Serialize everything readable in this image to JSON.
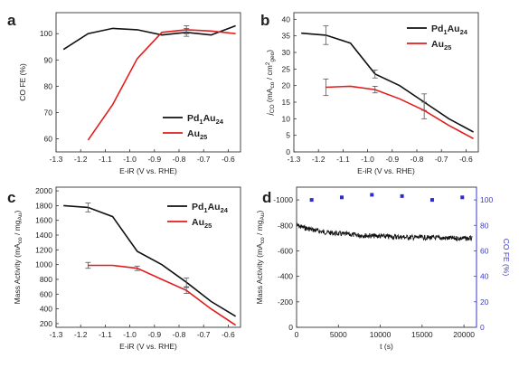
{
  "chart_data": [
    {
      "panel": "a",
      "type": "line",
      "xlabel": "E-iR (V vs. RHE)",
      "ylabel": "CO FE (%)",
      "xlim": [
        -1.3,
        -0.55
      ],
      "ylim": [
        55,
        108
      ],
      "x_ticks": [
        -1.3,
        -1.2,
        -1.1,
        -1.0,
        -0.9,
        -0.8,
        -0.7,
        -0.6
      ],
      "y_ticks": [
        60,
        70,
        80,
        90,
        100
      ],
      "legend_position": "lower-right",
      "series": [
        {
          "name": "Pd1Au24",
          "label_main": "Pd",
          "label_sub1": "1",
          "label_mid": "Au",
          "label_sub2": "24",
          "color": "#111111",
          "x": [
            -1.27,
            -1.17,
            -1.07,
            -0.97,
            -0.87,
            -0.77,
            -0.67,
            -0.57
          ],
          "y": [
            94,
            100,
            102,
            101.5,
            99.5,
            100.5,
            99.5,
            103
          ],
          "error": [
            0,
            0,
            0,
            0,
            0,
            1.5,
            0,
            0
          ]
        },
        {
          "name": "Au25",
          "label_main": "Au",
          "label_sub1": "25",
          "color": "#e31c1c",
          "x": [
            -1.17,
            -1.07,
            -0.97,
            -0.87,
            -0.77,
            -0.67,
            -0.57
          ],
          "y": [
            59.5,
            73,
            90.5,
            100.5,
            101.5,
            101,
            100
          ],
          "error": [
            0,
            0,
            0,
            0,
            1.5,
            0,
            0
          ]
        }
      ]
    },
    {
      "panel": "b",
      "type": "line",
      "xlabel": "E-iR (V vs. RHE)",
      "ylabel": "jCO (mAcm / cm²geo)",
      "ylabel_parts": {
        "j": "j",
        "jsub": "CO",
        "open": " (mA",
        "asub": "co",
        "slash": " / cm",
        "gsup": "2",
        "gsub": "geo",
        "close": ")"
      },
      "xlim": [
        -1.3,
        -0.55
      ],
      "ylim": [
        0,
        42
      ],
      "x_ticks": [
        -1.3,
        -1.2,
        -1.1,
        -1.0,
        -0.9,
        -0.8,
        -0.7,
        -0.6
      ],
      "y_ticks": [
        0,
        5,
        10,
        15,
        20,
        25,
        30,
        35,
        40
      ],
      "legend_position": "top-right",
      "series": [
        {
          "name": "Pd1Au24",
          "label_main": "Pd",
          "label_sub1": "1",
          "label_mid": "Au",
          "label_sub2": "24",
          "color": "#111111",
          "x": [
            -1.27,
            -1.17,
            -1.07,
            -0.97,
            -0.87,
            -0.77,
            -0.67,
            -0.57
          ],
          "y": [
            35.8,
            35.2,
            32.8,
            23.5,
            20,
            15,
            10,
            6
          ],
          "error": [
            0,
            2.8,
            0,
            1.2,
            0,
            2.5,
            0,
            0
          ]
        },
        {
          "name": "Au25",
          "label_main": "Au",
          "label_sub1": "25",
          "color": "#e31c1c",
          "x": [
            -1.17,
            -1.07,
            -0.97,
            -0.87,
            -0.77,
            -0.67,
            -0.57
          ],
          "y": [
            19.5,
            19.8,
            18.8,
            16,
            12.5,
            8,
            4
          ],
          "error": [
            2.5,
            0,
            1,
            0,
            2.5,
            0,
            0
          ]
        }
      ]
    },
    {
      "panel": "c",
      "type": "line",
      "xlabel": "E-iR (V vs. RHE)",
      "ylabel": "Mass Activity (mAco / mgmetal)",
      "ylabel_parts": {
        "main": "Mass Activity (mA",
        "sub1": "co",
        "mid": " / mg",
        "sub2": "Au",
        "close": ")"
      },
      "xlim": [
        -1.3,
        -0.55
      ],
      "ylim": [
        150,
        2050
      ],
      "x_ticks": [
        -1.3,
        -1.2,
        -1.1,
        -1.0,
        -0.9,
        -0.8,
        -0.7,
        -0.6
      ],
      "y_ticks": [
        200,
        400,
        600,
        800,
        1000,
        1200,
        1400,
        1600,
        1800,
        2000
      ],
      "legend_position": "top-right",
      "series": [
        {
          "name": "Pd1Au24",
          "label_main": "Pd",
          "label_sub1": "1",
          "label_mid": "Au",
          "label_sub2": "24",
          "color": "#111111",
          "x": [
            -1.27,
            -1.17,
            -1.07,
            -0.97,
            -0.87,
            -0.77,
            -0.67,
            -0.57
          ],
          "y": [
            1800,
            1775,
            1650,
            1180,
            1000,
            760,
            500,
            300
          ],
          "error": [
            0,
            60,
            0,
            0,
            0,
            60,
            0,
            0
          ]
        },
        {
          "name": "Au25",
          "label_main": "Au",
          "label_sub1": "25",
          "color": "#e31c1c",
          "x": [
            -1.17,
            -1.07,
            -0.97,
            -0.87,
            -0.77,
            -0.67,
            -0.57
          ],
          "y": [
            990,
            990,
            950,
            800,
            650,
            400,
            180
          ],
          "error": [
            40,
            0,
            30,
            0,
            40,
            0,
            0
          ]
        }
      ]
    },
    {
      "panel": "d",
      "type": "scatter",
      "xlabel": "t (s)",
      "ylabel_left": "Mass Activity (mAco / mgAu)",
      "ylabel_left_parts": {
        "main": "Mass Activity (mA",
        "sub1": "co",
        "mid": " / mg",
        "sub2": "Au",
        "close": ")"
      },
      "ylabel_right": "CO FE (%)",
      "xlim": [
        0,
        21500
      ],
      "ylim_left": [
        0,
        -1100
      ],
      "ylim_right": [
        0,
        110
      ],
      "x_ticks": [
        0,
        5000,
        10000,
        15000,
        20000
      ],
      "y_left_ticks": [
        0,
        -200,
        -400,
        -600,
        -800,
        -1000
      ],
      "y_right_ticks": [
        0,
        20,
        40,
        60,
        80,
        100
      ],
      "right_axis_color": "#3b3bcf",
      "activity": {
        "color": "#111111",
        "t": [
          0,
          1000,
          2000,
          3000,
          4000,
          5000,
          6000,
          7000,
          8000,
          9000,
          10000,
          11000,
          12000,
          13000,
          14000,
          15000,
          16000,
          17000,
          18000,
          19000,
          20000,
          21000
        ],
        "values": [
          -800,
          -780,
          -765,
          -750,
          -742,
          -735,
          -730,
          -725,
          -722,
          -718,
          -715,
          -712,
          -710,
          -708,
          -706,
          -705,
          -703,
          -702,
          -700,
          -699,
          -698,
          -697
        ]
      },
      "fe": {
        "color": "#2b2bd6",
        "t": [
          1800,
          5400,
          9000,
          12600,
          16200,
          19800
        ],
        "values": [
          100,
          102,
          104,
          103,
          100,
          102
        ]
      }
    }
  ]
}
